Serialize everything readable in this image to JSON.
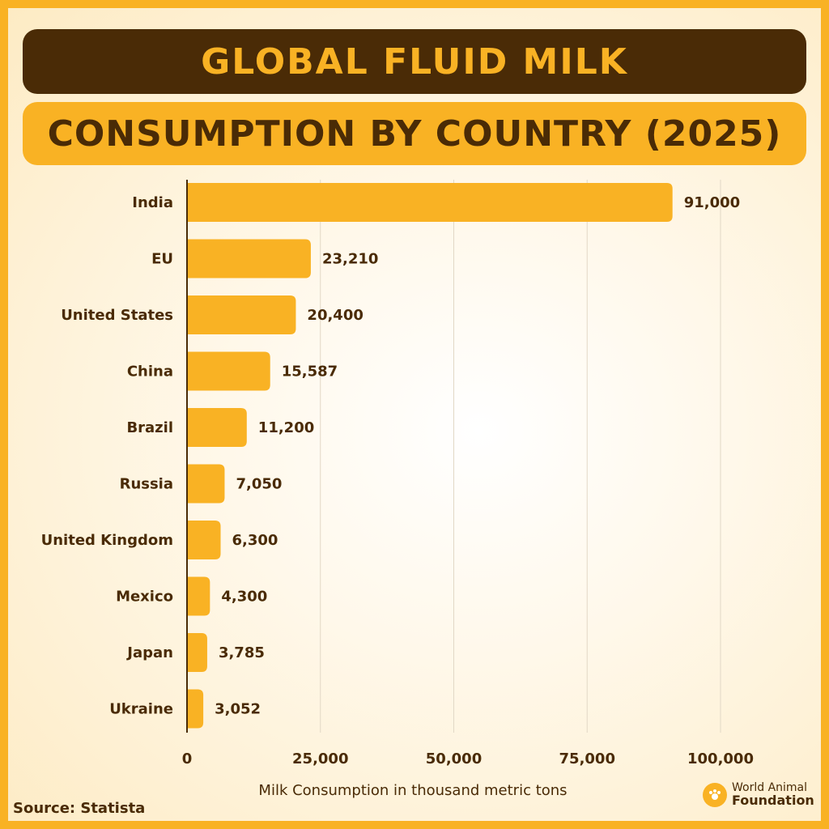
{
  "header": {
    "title": "GLOBAL FLUID MILK",
    "subtitle": "CONSUMPTION BY COUNTRY (2025)"
  },
  "footer": {
    "source": "Source: Statista",
    "logo_line1": "World Animal",
    "logo_line2": "Foundation"
  },
  "colors": {
    "bar": "#f9b224",
    "dark": "#4a2b06",
    "grid": "#e2d8c6"
  },
  "chart_data": {
    "type": "bar",
    "orientation": "horizontal",
    "categories": [
      "India",
      "EU",
      "United States",
      "China",
      "Brazil",
      "Russia",
      "United Kingdom",
      "Mexico",
      "Japan",
      "Ukraine"
    ],
    "values": [
      91000,
      23210,
      20400,
      15587,
      11200,
      7050,
      6300,
      4300,
      3785,
      3052
    ],
    "value_labels": [
      "91,000",
      "23,210",
      "20,400",
      "15,587",
      "11,200",
      "7,050",
      "6,300",
      "4,300",
      "3,785",
      "3,052"
    ],
    "xlabel": "Milk Consumption in thousand metric tons",
    "xlim": [
      0,
      100000
    ],
    "x_ticks": [
      0,
      25000,
      50000,
      75000,
      100000
    ],
    "x_tick_labels": [
      "0",
      "25,000",
      "50,000",
      "75,000",
      "100,000"
    ],
    "grid": "vertical"
  }
}
